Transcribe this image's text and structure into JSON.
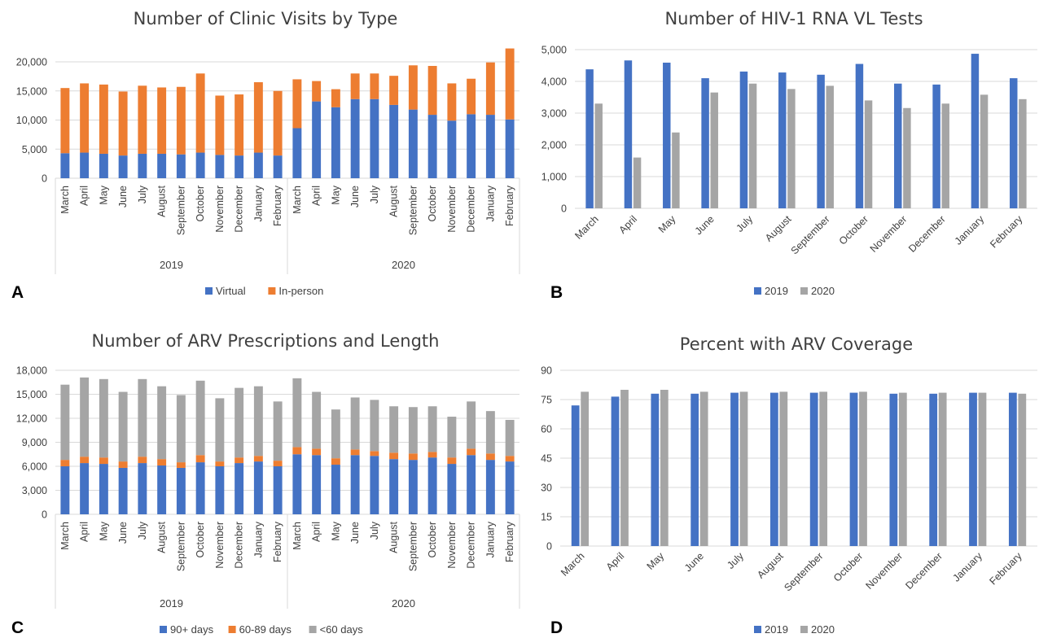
{
  "colors": {
    "virtual": "#4472c4",
    "in_person": "#ed7d31",
    "days_90_plus": "#4472c4",
    "days_60_89": "#ed7d31",
    "days_lt60": "#a5a5a5",
    "year_2019": "#4472c4",
    "year_2020": "#a5a5a5"
  },
  "panel_letters": [
    "A",
    "B",
    "C",
    "D"
  ],
  "chart_data": [
    {
      "id": "A",
      "type": "bar",
      "stacked": true,
      "title": "Number of Clinic Visits by Type",
      "categories": [
        "March",
        "April",
        "May",
        "June",
        "July",
        "August",
        "September",
        "October",
        "November",
        "December",
        "January",
        "February",
        "March",
        "April",
        "May",
        "June",
        "July",
        "August",
        "September",
        "October",
        "November",
        "December",
        "January",
        "February"
      ],
      "groups": [
        {
          "label": "2019",
          "count": 12
        },
        {
          "label": "2020",
          "count": 12
        }
      ],
      "series": [
        {
          "name": "Virtual",
          "color": "#4472c4",
          "values": [
            4300,
            4400,
            4200,
            3900,
            4200,
            4200,
            4100,
            4400,
            4000,
            3900,
            4400,
            3900,
            8600,
            13200,
            12200,
            13600,
            13600,
            12600,
            11800,
            10900,
            9900,
            11000,
            10900,
            10100
          ]
        },
        {
          "name": "In-person",
          "color": "#ed7d31",
          "values": [
            11200,
            11900,
            11900,
            11000,
            11700,
            11400,
            11600,
            13600,
            10200,
            10500,
            12100,
            11100,
            8400,
            3500,
            3100,
            4400,
            4400,
            5000,
            7600,
            8400,
            6400,
            6100,
            9000,
            12200
          ]
        }
      ],
      "yticks": [
        "0",
        "5,000",
        "10,000",
        "15,000",
        "20,000"
      ],
      "ylim": [
        0,
        20000
      ],
      "grid": true,
      "legend": "bottom"
    },
    {
      "id": "B",
      "type": "bar",
      "stacked": false,
      "title": "Number of HIV-1 RNA VL Tests",
      "categories": [
        "March",
        "April",
        "May",
        "June",
        "July",
        "August",
        "September",
        "October",
        "November",
        "December",
        "January",
        "February"
      ],
      "series": [
        {
          "name": "2019",
          "color": "#4472c4",
          "values": [
            4380,
            4660,
            4590,
            4100,
            4310,
            4280,
            4210,
            4550,
            3930,
            3900,
            4870,
            4100
          ]
        },
        {
          "name": "2020",
          "color": "#a5a5a5",
          "values": [
            3300,
            1600,
            2390,
            3650,
            3930,
            3760,
            3860,
            3400,
            3160,
            3300,
            3580,
            3440
          ]
        }
      ],
      "yticks": [
        "0",
        "1,000",
        "2,000",
        "3,000",
        "4,000",
        "5,000"
      ],
      "ylim": [
        0,
        5000
      ],
      "grid": true,
      "legend": "bottom"
    },
    {
      "id": "C",
      "type": "bar",
      "stacked": true,
      "title": "Number of ARV Prescriptions and Length",
      "categories": [
        "March",
        "April",
        "May",
        "June",
        "July",
        "August",
        "September",
        "October",
        "November",
        "December",
        "January",
        "February",
        "March",
        "April",
        "May",
        "June",
        "July",
        "August",
        "September",
        "October",
        "November",
        "December",
        "January",
        "February"
      ],
      "groups": [
        {
          "label": "2019",
          "count": 12
        },
        {
          "label": "2020",
          "count": 12
        }
      ],
      "series": [
        {
          "name": "90+ days",
          "color": "#4472c4",
          "values": [
            6000,
            6400,
            6300,
            5800,
            6400,
            6100,
            5800,
            6500,
            6000,
            6400,
            6600,
            6000,
            7500,
            7400,
            6200,
            7400,
            7300,
            6900,
            6800,
            7100,
            6300,
            7400,
            6800,
            6600
          ]
        },
        {
          "name": "60-89 days",
          "color": "#ed7d31",
          "values": [
            800,
            800,
            800,
            800,
            800,
            800,
            700,
            900,
            600,
            700,
            700,
            700,
            900,
            800,
            800,
            700,
            600,
            800,
            800,
            700,
            800,
            800,
            800,
            700
          ]
        },
        {
          "name": "<60 days",
          "color": "#a5a5a5",
          "values": [
            9400,
            9900,
            9800,
            8700,
            9700,
            9100,
            8400,
            9300,
            7900,
            8700,
            8700,
            7400,
            8600,
            7100,
            6100,
            6500,
            6400,
            5800,
            5800,
            5700,
            5100,
            5900,
            5300,
            4500
          ]
        }
      ],
      "yticks": [
        "0",
        "3,000",
        "6,000",
        "9,000",
        "12,000",
        "15,000",
        "18,000"
      ],
      "ylim": [
        0,
        18000
      ],
      "grid": true,
      "legend": "bottom"
    },
    {
      "id": "D",
      "type": "bar",
      "stacked": false,
      "title": "Percent with ARV Coverage",
      "categories": [
        "March",
        "April",
        "May",
        "June",
        "July",
        "August",
        "September",
        "October",
        "November",
        "December",
        "January",
        "February"
      ],
      "series": [
        {
          "name": "2019",
          "color": "#4472c4",
          "values": [
            72,
            76.5,
            78,
            78,
            78.5,
            78.5,
            78.5,
            78.5,
            78,
            78,
            78.5,
            78.5
          ]
        },
        {
          "name": "2020",
          "color": "#a5a5a5",
          "values": [
            79,
            80,
            80,
            79,
            79,
            79,
            79,
            79,
            78.5,
            78.5,
            78.5,
            78
          ]
        }
      ],
      "yticks": [
        "0",
        "15",
        "30",
        "45",
        "60",
        "75",
        "90"
      ],
      "ylim": [
        0,
        90
      ],
      "grid": true,
      "legend": "bottom"
    }
  ]
}
